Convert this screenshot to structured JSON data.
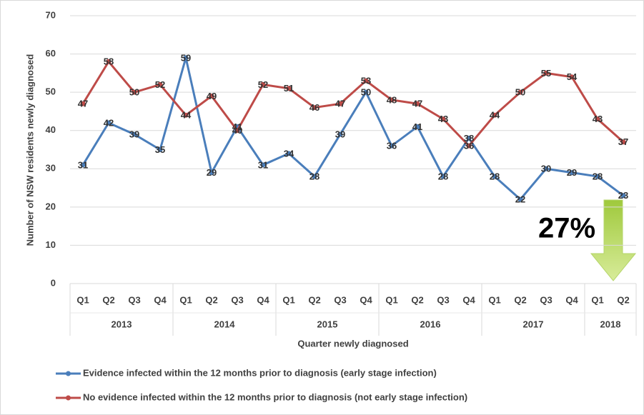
{
  "chart_data": {
    "type": "line",
    "y_axis_label": "Number of NSW residents newly diagnosed",
    "x_axis_label": "Quarter newly diagnosed",
    "groups": [
      {
        "label": "2013",
        "categories": [
          "Q1",
          "Q2",
          "Q3",
          "Q4"
        ]
      },
      {
        "label": "2014",
        "categories": [
          "Q1",
          "Q2",
          "Q3",
          "Q4"
        ]
      },
      {
        "label": "2015",
        "categories": [
          "Q1",
          "Q2",
          "Q3",
          "Q4"
        ]
      },
      {
        "label": "2016",
        "categories": [
          "Q1",
          "Q2",
          "Q3",
          "Q4"
        ]
      },
      {
        "label": "2017",
        "categories": [
          "Q1",
          "Q2",
          "Q3",
          "Q4"
        ]
      },
      {
        "label": "2018",
        "categories": [
          "Q1",
          "Q2"
        ]
      }
    ],
    "series": [
      {
        "name": "Evidence infected within the 12 months prior to diagnosis (early stage infection)",
        "color": "#4a7ebb",
        "values": [
          31,
          42,
          39,
          35,
          59,
          29,
          41,
          31,
          34,
          28,
          39,
          50,
          36,
          41,
          28,
          38,
          28,
          22,
          30,
          29,
          28,
          23
        ]
      },
      {
        "name": "No evidence infected within the 12 months prior to diagnosis (not early stage infection)",
        "color": "#be4b48",
        "values": [
          47,
          58,
          50,
          52,
          44,
          49,
          40,
          52,
          51,
          46,
          47,
          53,
          48,
          47,
          43,
          36,
          44,
          50,
          55,
          54,
          43,
          37
        ]
      }
    ],
    "ylim": [
      0,
      70
    ],
    "yticks": [
      0,
      10,
      20,
      30,
      40,
      50,
      60,
      70
    ],
    "grid": true,
    "annotation": "27%"
  }
}
